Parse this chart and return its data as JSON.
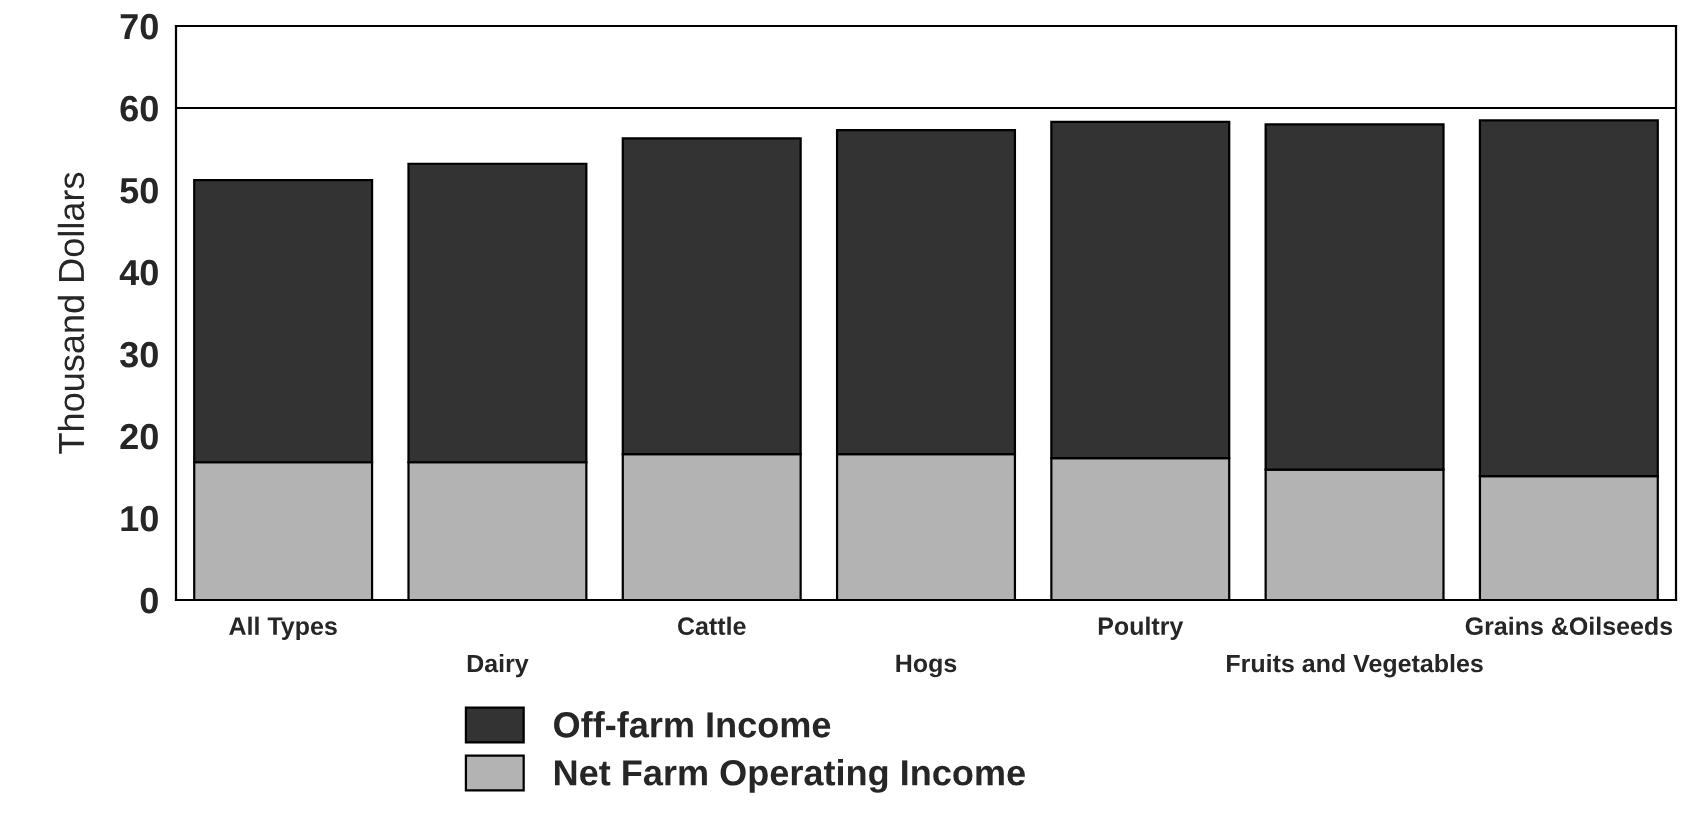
{
  "chart_data": {
    "type": "bar",
    "stacked": true,
    "ylabel": "Thousand Dollars",
    "categories": [
      "All Types",
      "Dairy",
      "Cattle",
      "Hogs",
      "Poultry",
      "Fruits and Vegetables",
      "Grains &Oilseeds"
    ],
    "series": [
      {
        "name": "Net Farm Operating Income",
        "color": "#b3b3b3",
        "values": [
          16.8,
          16.8,
          17.8,
          17.8,
          17.3,
          15.9,
          15.1
        ]
      },
      {
        "name": "Off-farm Income",
        "color": "#333333",
        "values": [
          34.4,
          36.4,
          38.5,
          39.5,
          41.0,
          42.1,
          43.4
        ]
      }
    ],
    "ylim": [
      0,
      70
    ],
    "yticks": [
      0,
      10,
      20,
      30,
      40,
      50,
      60,
      70
    ],
    "ref_lines": [
      {
        "axis": "y",
        "value": 60,
        "color": "#000000"
      }
    ],
    "legend": "bottom"
  }
}
